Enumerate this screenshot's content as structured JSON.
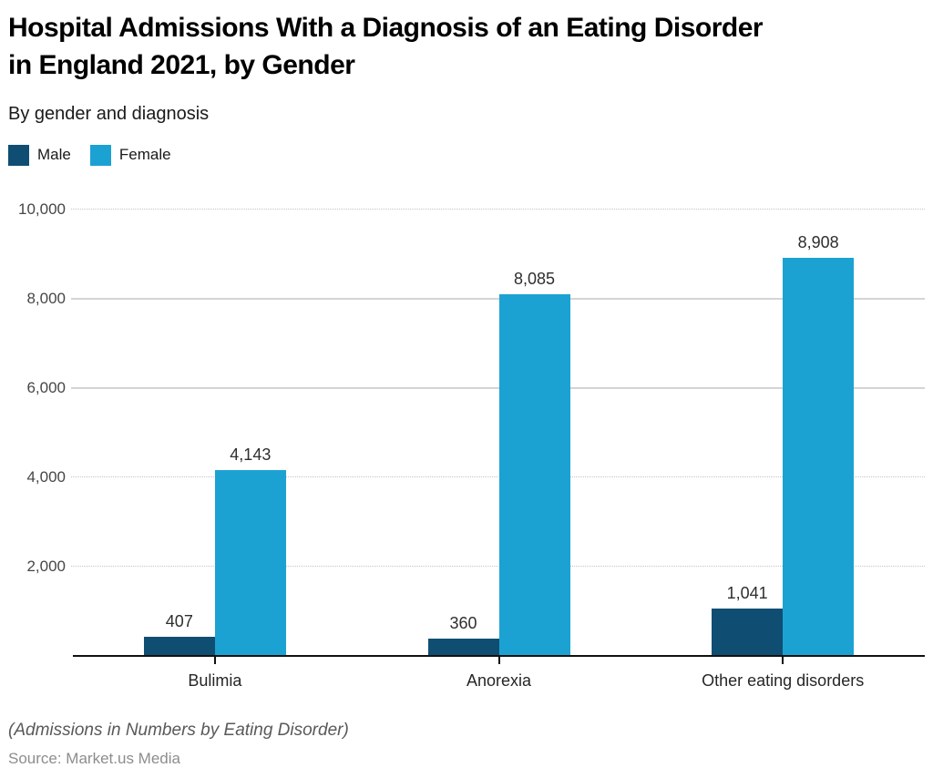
{
  "page": {
    "title_line1": "Hospital Admissions With a Diagnosis of an Eating Disorder",
    "title_line2": "in England 2021, by Gender",
    "subtitle": "By gender and diagnosis",
    "footnote": "(Admissions in Numbers by Eating Disorder)",
    "source": "Source: Market.us Media"
  },
  "chart_data": {
    "type": "bar",
    "title": "Hospital Admissions With a Diagnosis of an Eating Disorder in England 2021, by Gender",
    "subtitle": "By gender and diagnosis",
    "categories": [
      "Bulimia",
      "Anorexia",
      "Other eating disorders"
    ],
    "series": [
      {
        "name": "Male",
        "color": "#0f4e72",
        "values": [
          407,
          360,
          1041
        ],
        "labels": [
          "407",
          "360",
          "1,041"
        ]
      },
      {
        "name": "Female",
        "color": "#1ca2d2",
        "values": [
          4143,
          8085,
          8908
        ],
        "labels": [
          "4,143",
          "8,085",
          "8,908"
        ]
      }
    ],
    "ylim": [
      0,
      10000
    ],
    "yticks": [
      {
        "value": 2000,
        "label": "2,000",
        "style": "dotted"
      },
      {
        "value": 4000,
        "label": "4,000",
        "style": "dotted"
      },
      {
        "value": 6000,
        "label": "6,000",
        "style": "solid"
      },
      {
        "value": 8000,
        "label": "8,000",
        "style": "solid"
      },
      {
        "value": 10000,
        "label": "10,000",
        "style": "dotted"
      }
    ],
    "legend_position": "top-left",
    "grid": true,
    "value_labels": true,
    "footnote": "(Admissions in Numbers by Eating Disorder)",
    "source": "Source: Market.us Media"
  }
}
